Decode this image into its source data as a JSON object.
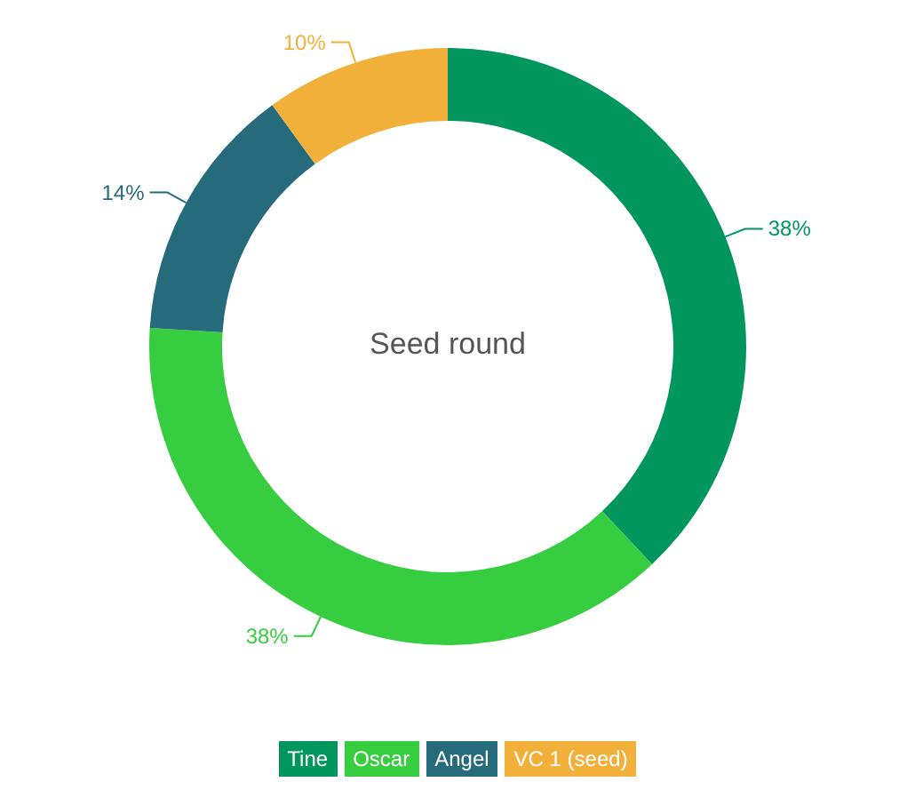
{
  "chart_data": {
    "type": "donut",
    "title": "Seed round",
    "categories": [
      "Tine",
      "Oscar",
      "Angel",
      "VC 1 (seed)"
    ],
    "values": [
      38,
      38,
      14,
      10
    ],
    "colors": [
      "#00965e",
      "#37cd41",
      "#266b7c",
      "#f1b03a"
    ],
    "value_labels": [
      "38%",
      "38%",
      "14%",
      "10%"
    ],
    "legend": "bottom"
  }
}
